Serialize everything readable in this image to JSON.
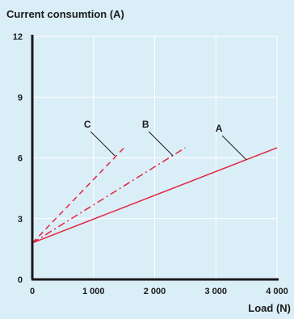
{
  "chart_data": {
    "type": "line",
    "ylabel": "Current consumtion (A)",
    "xlabel": "Load (N)",
    "xlim": [
      0,
      4000
    ],
    "ylim": [
      0,
      12
    ],
    "x_ticks": [
      0,
      1000,
      2000,
      3000,
      4000
    ],
    "x_tick_labels": [
      "0",
      "1 000",
      "2 000",
      "3 000",
      "4 000"
    ],
    "y_ticks": [
      0,
      3,
      6,
      9,
      12
    ],
    "y_tick_labels": [
      "0",
      "3",
      "6",
      "9",
      "12"
    ],
    "grid": true,
    "series": [
      {
        "name": "A",
        "style": "solid",
        "x": [
          0,
          4000
        ],
        "y": [
          1.8,
          6.5
        ]
      },
      {
        "name": "B",
        "style": "dashdot",
        "x": [
          0,
          2500
        ],
        "y": [
          1.8,
          6.5
        ]
      },
      {
        "name": "C",
        "style": "dashed",
        "x": [
          0,
          1500
        ],
        "y": [
          1.8,
          6.5
        ]
      }
    ],
    "series_label_anchor": [
      {
        "name": "A",
        "x": 3500,
        "y": 5.9
      },
      {
        "name": "B",
        "x": 2300,
        "y": 6.1
      },
      {
        "name": "C",
        "x": 1350,
        "y": 6.1
      }
    ],
    "colors": {
      "background": "#daeef8",
      "grid": "#ffffff",
      "axis": "#1a1a1a",
      "series": "#e3263f"
    }
  }
}
